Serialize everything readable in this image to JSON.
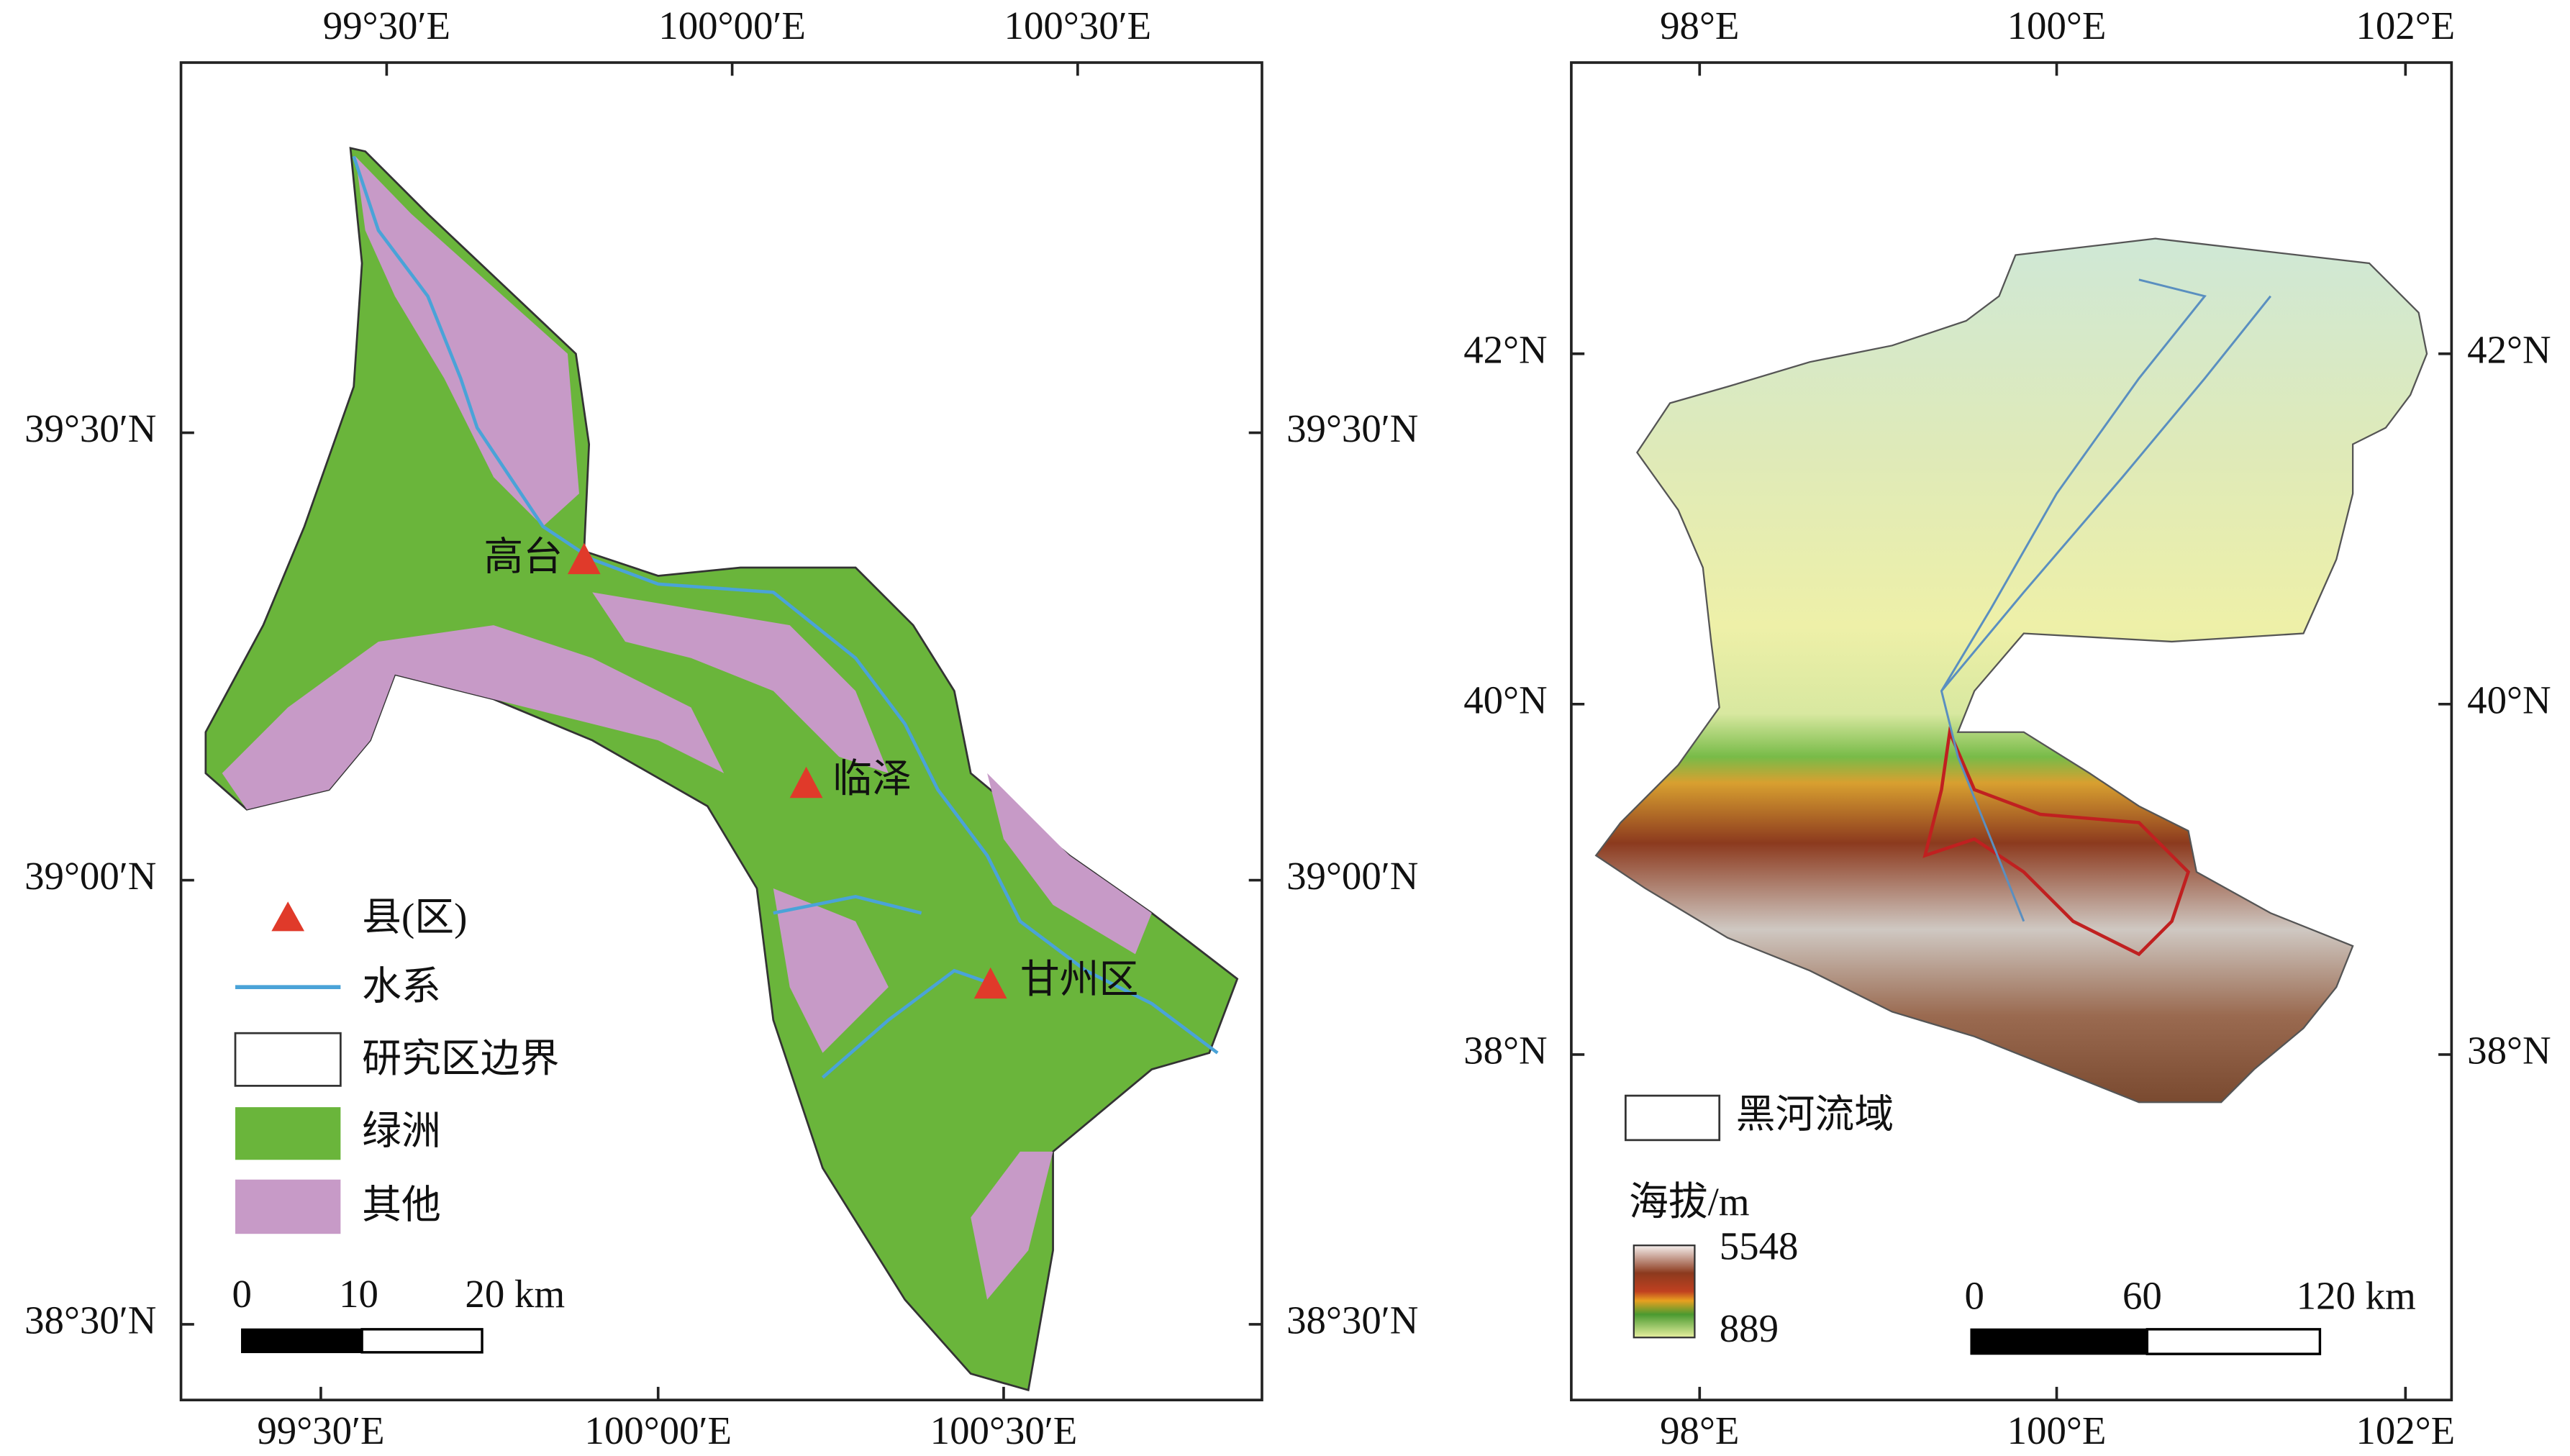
{
  "maps": [
    {
      "x_ticks": [
        "99°30′E",
        "100°00′E",
        "100°30′E"
      ],
      "y_ticks": [
        "39°30′N",
        "39°00′N",
        "38°30′N"
      ],
      "places": [
        "高台",
        "临泽",
        "甘州区"
      ],
      "legend": [
        "县(区)",
        "水系",
        "研究区边界",
        "绿洲",
        "其他"
      ],
      "scale_bar": [
        "0",
        "10",
        "20 km"
      ]
    },
    {
      "x_ticks": [
        "98°E",
        "100°E",
        "102°E"
      ],
      "y_ticks": [
        "42°N",
        "40°N",
        "38°N"
      ],
      "legend": [
        "黑河流域"
      ],
      "elevation_legend": {
        "title": "海拔/m",
        "max": 5548,
        "min": 889
      },
      "scale_bar": [
        "0",
        "60",
        "120 km"
      ]
    }
  ]
}
